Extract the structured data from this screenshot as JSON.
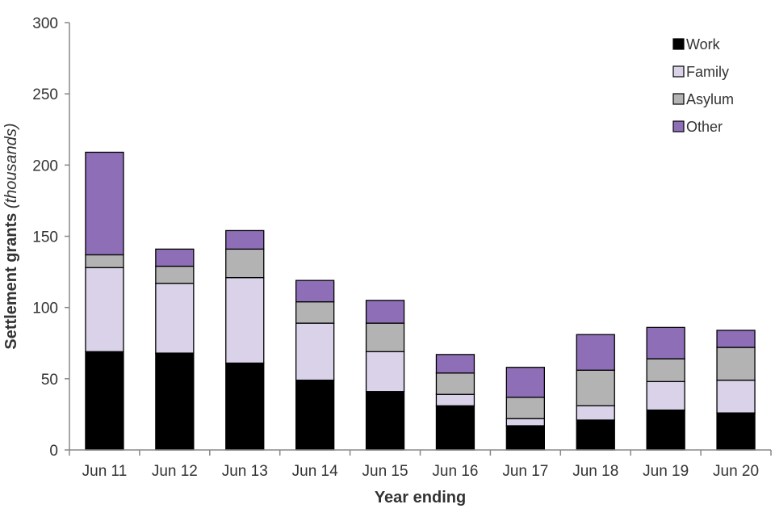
{
  "chart_data": {
    "type": "bar",
    "stacked": true,
    "categories": [
      "Jun 11",
      "Jun 12",
      "Jun 13",
      "Jun 14",
      "Jun 15",
      "Jun 16",
      "Jun 17",
      "Jun 18",
      "Jun 19",
      "Jun 20"
    ],
    "series": [
      {
        "name": "Work",
        "color": "#000000",
        "values": [
          69,
          68,
          61,
          49,
          41,
          31,
          17,
          21,
          28,
          26
        ]
      },
      {
        "name": "Family",
        "color": "#d9d2e9",
        "values": [
          59,
          49,
          60,
          40,
          28,
          8,
          5,
          10,
          20,
          23
        ]
      },
      {
        "name": "Asylum",
        "color": "#b3b3b3",
        "values": [
          9,
          12,
          20,
          15,
          20,
          15,
          15,
          25,
          16,
          23
        ]
      },
      {
        "name": "Other",
        "color": "#8e6fb7",
        "values": [
          72,
          12,
          13,
          15,
          16,
          13,
          21,
          25,
          22,
          12
        ]
      }
    ],
    "title": "",
    "xlabel": "Year ending",
    "ylabel": "Settlement grants",
    "ylabel_unit": "(thousands)",
    "ylim": [
      0,
      300
    ],
    "yticks": [
      "0",
      "50",
      "100",
      "150",
      "200",
      "250",
      "300"
    ],
    "grid": false,
    "legend_position": "top-right"
  }
}
